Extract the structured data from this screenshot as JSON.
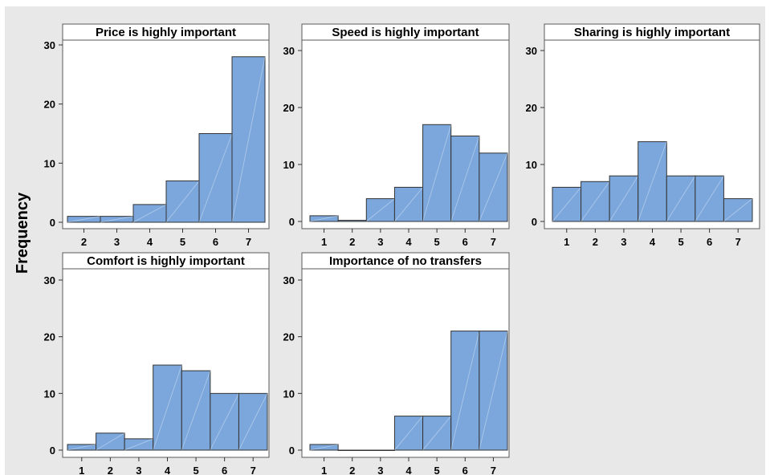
{
  "figure": {
    "ylabel": "Frequency",
    "bar_color": "#7ba7dc",
    "background": "#e8e8e8"
  },
  "chart_data": [
    {
      "type": "bar",
      "title": "Price is highly important",
      "categories": [
        "2",
        "3",
        "4",
        "5",
        "6",
        "7"
      ],
      "values": [
        1,
        1,
        3,
        7,
        15,
        28
      ],
      "yticks": [
        0,
        10,
        20,
        30
      ],
      "ylim": [
        0,
        32
      ]
    },
    {
      "type": "bar",
      "title": "Speed is highly important",
      "categories": [
        "1",
        "2",
        "3",
        "4",
        "5",
        "6",
        "7"
      ],
      "values": [
        1,
        0.2,
        4,
        6,
        17,
        15,
        12
      ],
      "yticks": [
        0,
        10,
        20,
        30
      ],
      "ylim": [
        0,
        32
      ]
    },
    {
      "type": "bar",
      "title": "Sharing is highly important",
      "categories": [
        "1",
        "2",
        "3",
        "4",
        "5",
        "6",
        "7"
      ],
      "values": [
        6,
        7,
        8,
        14,
        8,
        8,
        4
      ],
      "yticks": [
        0,
        10,
        20,
        30
      ],
      "ylim": [
        0,
        32
      ]
    },
    {
      "type": "bar",
      "title": "Comfort is highly important",
      "categories": [
        "1",
        "2",
        "3",
        "4",
        "5",
        "6",
        "7"
      ],
      "values": [
        1,
        3,
        2,
        15,
        14,
        10,
        10
      ],
      "yticks": [
        0,
        10,
        20,
        30
      ],
      "ylim": [
        0,
        32
      ]
    },
    {
      "type": "bar",
      "title": "Importance of no transfers",
      "categories": [
        "1",
        "2",
        "3",
        "4",
        "5",
        "6",
        "7"
      ],
      "values": [
        1,
        0,
        0,
        6,
        6,
        21,
        21
      ],
      "yticks": [
        0,
        10,
        20,
        30
      ],
      "ylim": [
        0,
        32
      ]
    }
  ]
}
